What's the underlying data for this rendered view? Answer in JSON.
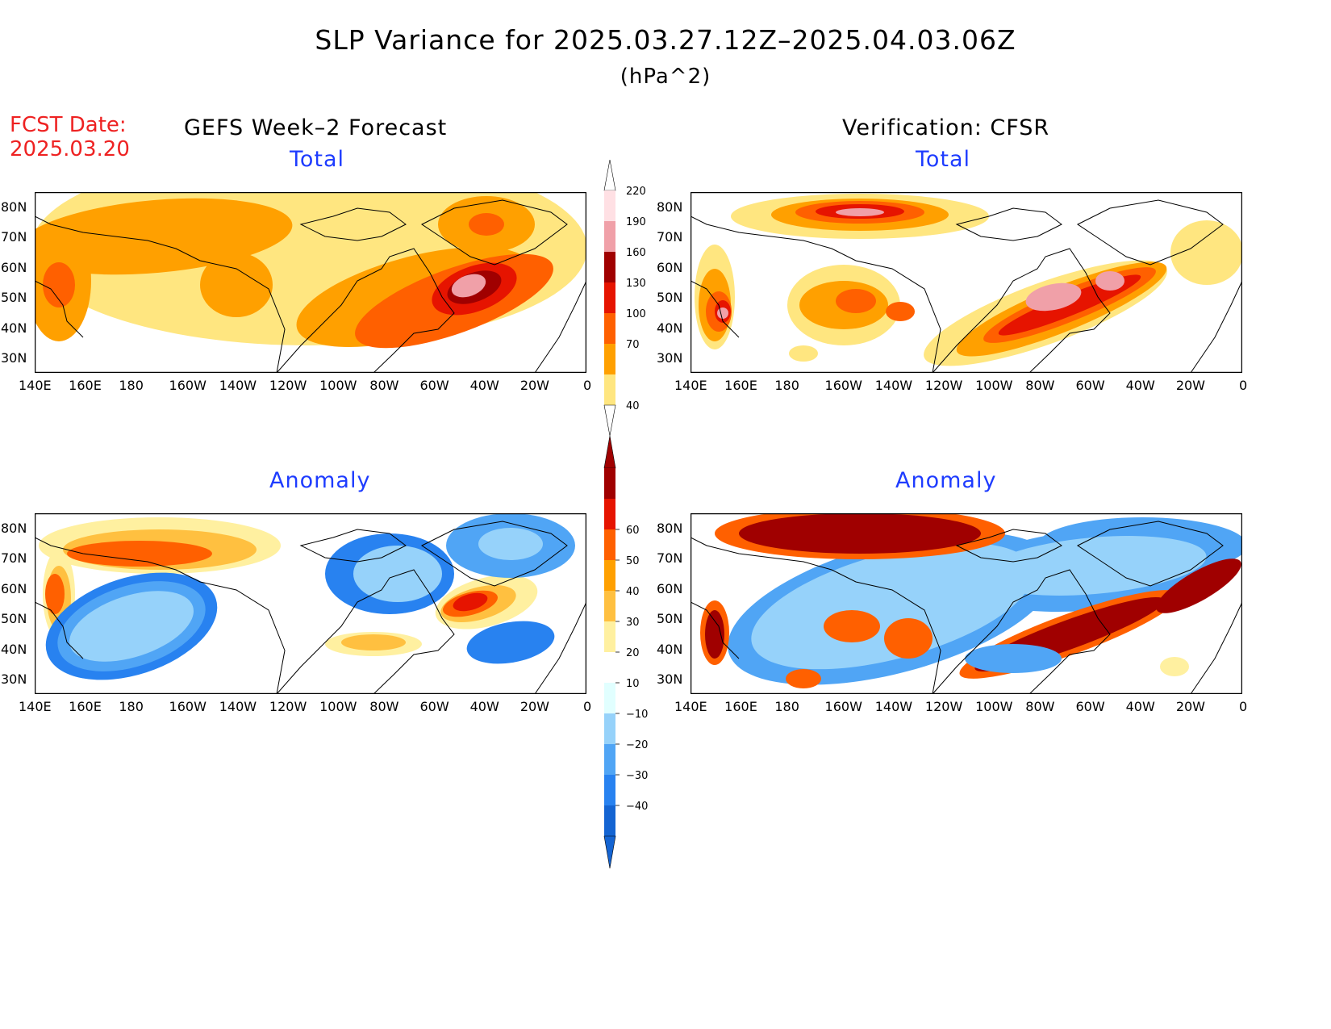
{
  "title": "SLP Variance for 2025.03.27.12Z–2025.04.03.06Z",
  "units": "(hPa^2)",
  "forecast_date": {
    "label": "FCST Date:",
    "value": "2025.03.20"
  },
  "columns": {
    "left": "GEFS Week–2 Forecast",
    "right": "Verification: CFSR"
  },
  "panels": [
    {
      "id": "fcst-total",
      "subtitle": "Total",
      "field": "total"
    },
    {
      "id": "verif-total",
      "subtitle": "Total",
      "field": "total"
    },
    {
      "id": "fcst-anomaly",
      "subtitle": "Anomaly",
      "field": "anomaly"
    },
    {
      "id": "verif-anomaly",
      "subtitle": "Anomaly",
      "field": "anomaly"
    }
  ],
  "lat_labels": [
    "80N",
    "70N",
    "60N",
    "50N",
    "40N",
    "30N"
  ],
  "lon_labels": [
    "140E",
    "160E",
    "180",
    "160W",
    "140W",
    "120W",
    "100W",
    "80W",
    "60W",
    "40W",
    "20W",
    "0"
  ],
  "colorbars": {
    "total": {
      "levels": [
        "40",
        "70",
        "100",
        "130",
        "160",
        "190",
        "220"
      ],
      "colors": [
        "#ffe680",
        "#ffa000",
        "#ff6000",
        "#e61400",
        "#a00000",
        "#f0a0a8",
        "#ffe0e4"
      ]
    },
    "anomaly": {
      "levels": [
        "−40",
        "−30",
        "−20",
        "−10",
        "10",
        "20",
        "30",
        "40",
        "50",
        "60"
      ],
      "colors": [
        "#1464d2",
        "#2882f0",
        "#50a5f5",
        "#96d2fa",
        "#e1ffff",
        "#ffffff",
        "#fff0a0",
        "#ffc040",
        "#ffa000",
        "#ff6000",
        "#e61400",
        "#a00000"
      ]
    }
  }
}
